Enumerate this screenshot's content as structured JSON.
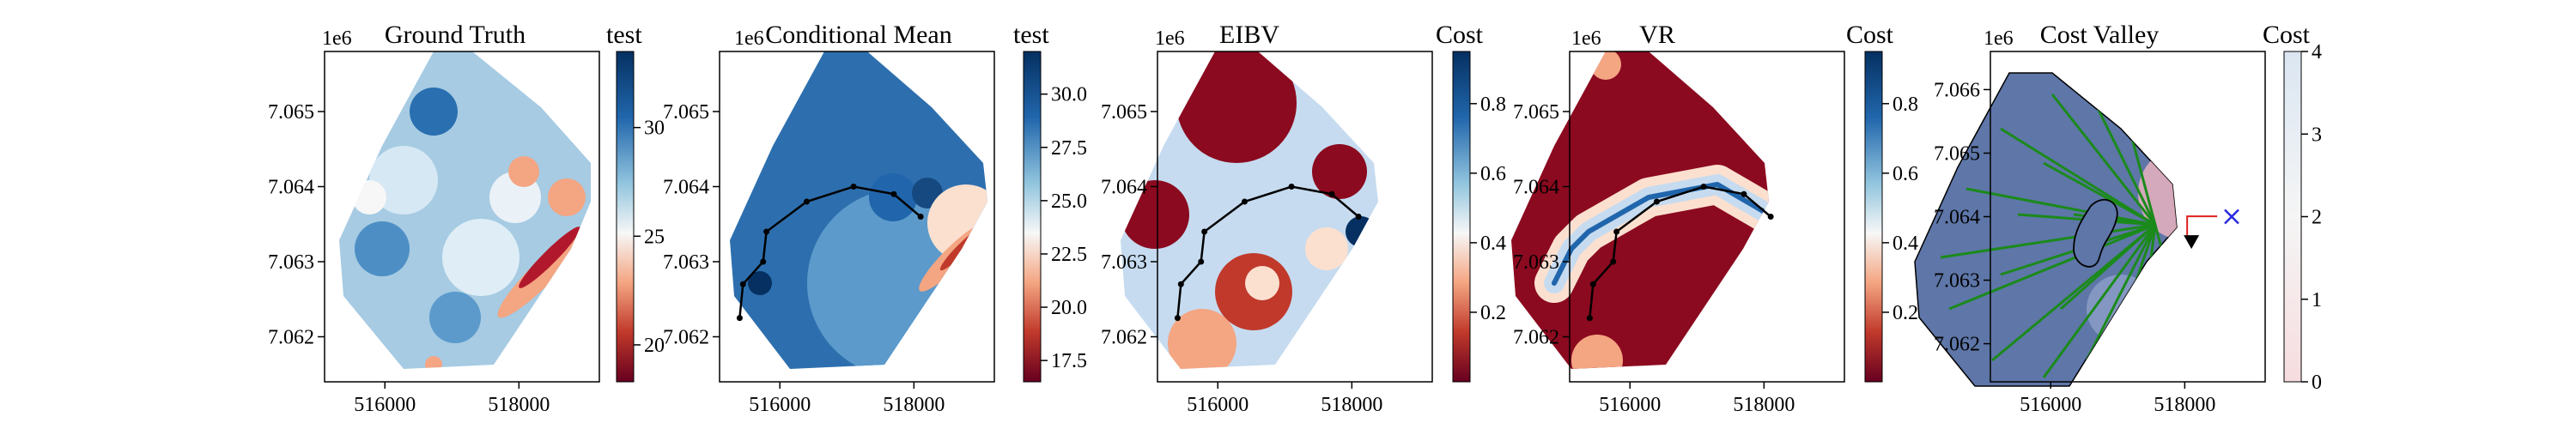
{
  "figure": {
    "chart_data": [
      {
        "type": "heatmap",
        "title": "Ground Truth",
        "colormap": "RdBu",
        "x_ticks": [
          516000,
          518000
        ],
        "x_tick_labels": [
          "516000",
          "518000"
        ],
        "y_ticks": [
          7.062,
          7.063,
          7.064,
          7.065
        ],
        "y_tick_labels": [
          "7.062",
          "7.063",
          "7.064",
          "7.065"
        ],
        "y_offset_label": "1e6",
        "colorbar": {
          "label": "test",
          "ticks": [
            20,
            25,
            30
          ],
          "tick_labels": [
            "20",
            "25",
            "30"
          ],
          "range": [
            18.3,
            33.5
          ]
        },
        "path": []
      },
      {
        "type": "heatmap",
        "title": "Conditional Mean",
        "colormap": "RdBu",
        "x_ticks": [
          516000,
          518000
        ],
        "x_tick_labels": [
          "516000",
          "518000"
        ],
        "y_ticks": [
          7.062,
          7.063,
          7.064,
          7.065
        ],
        "y_tick_labels": [
          "7.062",
          "7.063",
          "7.064",
          "7.065"
        ],
        "y_offset_label": "1e6",
        "colorbar": {
          "label": "test",
          "ticks": [
            17.5,
            20.0,
            22.5,
            25.0,
            27.5,
            30.0
          ],
          "tick_labels": [
            "17.5",
            "20.0",
            "22.5",
            "25.0",
            "27.5",
            "30.0"
          ],
          "range": [
            16.5,
            32.0
          ]
        },
        "path": [
          [
            515400,
            7.06225
          ],
          [
            515450,
            7.0627
          ],
          [
            515750,
            7.063
          ],
          [
            515800,
            7.0634
          ],
          [
            516400,
            7.0638
          ],
          [
            517100,
            7.064
          ],
          [
            517700,
            7.0639
          ],
          [
            518100,
            7.0636
          ]
        ]
      },
      {
        "type": "heatmap",
        "title": "EIBV",
        "colormap": "RdBu",
        "x_ticks": [
          516000,
          518000
        ],
        "x_tick_labels": [
          "516000",
          "518000"
        ],
        "y_ticks": [
          7.062,
          7.063,
          7.064,
          7.065
        ],
        "y_tick_labels": [
          "7.062",
          "7.063",
          "7.064",
          "7.065"
        ],
        "y_offset_label": "1e6",
        "colorbar": {
          "label": "Cost",
          "ticks": [
            0.2,
            0.4,
            0.6,
            0.8
          ],
          "tick_labels": [
            "0.2",
            "0.4",
            "0.6",
            "0.8"
          ],
          "range": [
            0.0,
            0.95
          ]
        },
        "path": [
          [
            515400,
            7.06225
          ],
          [
            515450,
            7.0627
          ],
          [
            515750,
            7.063
          ],
          [
            515800,
            7.0634
          ],
          [
            516400,
            7.0638
          ],
          [
            517100,
            7.064
          ],
          [
            517700,
            7.0639
          ],
          [
            518100,
            7.0636
          ]
        ]
      },
      {
        "type": "heatmap",
        "title": "VR",
        "colormap": "RdBu",
        "x_ticks": [
          516000,
          518000
        ],
        "x_tick_labels": [
          "516000",
          "518000"
        ],
        "y_ticks": [
          7.062,
          7.063,
          7.064,
          7.065
        ],
        "y_tick_labels": [
          "7.062",
          "7.063",
          "7.064",
          "7.065"
        ],
        "y_offset_label": "1e6",
        "colorbar": {
          "label": "Cost",
          "ticks": [
            0.2,
            0.4,
            0.6,
            0.8
          ],
          "tick_labels": [
            "0.2",
            "0.4",
            "0.6",
            "0.8"
          ],
          "range": [
            0.0,
            0.95
          ]
        },
        "path": [
          [
            515400,
            7.06225
          ],
          [
            515450,
            7.0627
          ],
          [
            515750,
            7.063
          ],
          [
            515800,
            7.0634
          ],
          [
            516400,
            7.0638
          ],
          [
            517100,
            7.064
          ],
          [
            517700,
            7.0639
          ],
          [
            518100,
            7.0636
          ]
        ]
      },
      {
        "type": "heatmap",
        "title": "Cost Valley",
        "colormap": "RdBu",
        "x_ticks": [
          516000,
          518000
        ],
        "x_tick_labels": [
          "516000",
          "518000"
        ],
        "y_ticks": [
          7.062,
          7.063,
          7.064,
          7.065,
          7.066
        ],
        "y_tick_labels": [
          "7.062",
          "7.063",
          "7.064",
          "7.065",
          "7.066"
        ],
        "y_offset_label": "1e6",
        "colorbar": {
          "label": "Cost",
          "ticks": [
            0,
            1,
            2,
            3,
            4
          ],
          "tick_labels": [
            "0",
            "1",
            "2",
            "3",
            "4"
          ],
          "range": [
            0,
            4
          ]
        },
        "path": [],
        "current_location": [
          518100,
          7.0636
        ],
        "target_marker": [
          518700,
          7.064
        ]
      }
    ]
  }
}
